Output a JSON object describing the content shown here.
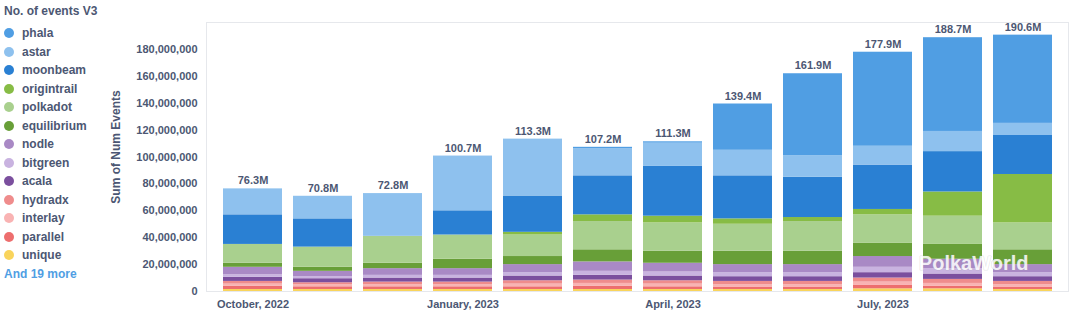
{
  "chart_data": {
    "type": "bar",
    "stacked": true,
    "title": "No. of events V3",
    "y_label": "Sum of Num Events",
    "legend": "left",
    "legend_more": "And 19 more",
    "grid": false,
    "annotations": [
      "PolkaWorld"
    ],
    "categories": [
      "October, 2022",
      null,
      null,
      "January, 2023",
      null,
      null,
      "April, 2023",
      null,
      null,
      "July, 2023",
      null,
      null
    ],
    "ylim": [
      0,
      200000000
    ],
    "yticks": [
      0,
      {
        "value": 20000000,
        "label": "20,000,000"
      },
      {
        "value": 40000000,
        "label": "40,000,000"
      },
      {
        "value": 60000000,
        "label": "60,000,000"
      },
      {
        "value": 80000000,
        "label": "80,000,000"
      },
      {
        "value": 100000000,
        "label": "100,000,000"
      },
      {
        "value": 120000000,
        "label": "120,000,000"
      },
      {
        "value": 140000000,
        "label": "140,000,000"
      },
      {
        "value": 160000000,
        "label": "160,000,000"
      },
      {
        "value": 180000000,
        "label": "180,000,000"
      }
    ],
    "totals": [
      76300000,
      70800000,
      72800000,
      100700000,
      113300000,
      107200000,
      111300000,
      139400000,
      161900000,
      177900000,
      188700000,
      190600000
    ],
    "total_labels": [
      "76.3M",
      "70.8M",
      "72.8M",
      "100.7M",
      "113.3M",
      "107.2M",
      "111.3M",
      "139.4M",
      "161.9M",
      "177.9M",
      "188.7M",
      "190.6M"
    ],
    "series": [
      {
        "name": "phala",
        "color": "#509ee3",
        "values": [
          0,
          0,
          0,
          0,
          0,
          1000000,
          1000000,
          34400000,
          60900000,
          69900000,
          69700000,
          65600000
        ]
      },
      {
        "name": "astar",
        "color": "#8ec1ee",
        "values": [
          19300000,
          16800000,
          31800000,
          40700000,
          42300000,
          20200000,
          17300000,
          19000000,
          16000000,
          14000000,
          15000000,
          9000000
        ]
      },
      {
        "name": "moonbeam",
        "color": "#2a80d3",
        "values": [
          22000000,
          21000000,
          0,
          18000000,
          27000000,
          29000000,
          37000000,
          32000000,
          30000000,
          33000000,
          30000000,
          29000000
        ]
      },
      {
        "name": "origintrail",
        "color": "#87bc45",
        "values": [
          0,
          0,
          0,
          0,
          2000000,
          5000000,
          5000000,
          4000000,
          3000000,
          4000000,
          18000000,
          36000000
        ]
      },
      {
        "name": "polkadot",
        "color": "#a9d08e",
        "values": [
          14000000,
          15000000,
          20000000,
          18000000,
          16000000,
          21000000,
          21000000,
          20000000,
          22000000,
          21000000,
          21000000,
          20000000
        ]
      },
      {
        "name": "equilibrium",
        "color": "#689f38",
        "values": [
          3000000,
          3000000,
          4000000,
          7000000,
          6000000,
          9000000,
          9000000,
          10000000,
          10000000,
          10000000,
          11000000,
          11000000
        ]
      },
      {
        "name": "nodle",
        "color": "#a989c5",
        "values": [
          5500000,
          4000000,
          5000000,
          5000000,
          6000000,
          7000000,
          6500000,
          6000000,
          6000000,
          8000000,
          7000000,
          6000000
        ]
      },
      {
        "name": "bitgreen",
        "color": "#c9b3e0",
        "values": [
          2000000,
          1500000,
          2000000,
          2000000,
          2500000,
          3000000,
          3000000,
          3000000,
          3000000,
          4000000,
          4000000,
          3000000
        ]
      },
      {
        "name": "acala",
        "color": "#7b4f9e",
        "values": [
          3000000,
          3000000,
          3000000,
          3000000,
          3500000,
          3500000,
          3500000,
          3500000,
          3500000,
          4000000,
          4000000,
          3500000
        ]
      },
      {
        "name": "hydradx",
        "color": "#ef8c8c",
        "values": [
          2000000,
          1500000,
          2000000,
          2000000,
          2500000,
          2500000,
          2500000,
          2500000,
          2500000,
          3000000,
          3000000,
          2500000
        ]
      },
      {
        "name": "interlay",
        "color": "#f9b3b3",
        "values": [
          1500000,
          1500000,
          1500000,
          1500000,
          2000000,
          2000000,
          2000000,
          2000000,
          2000000,
          2500000,
          2000000,
          2000000
        ]
      },
      {
        "name": "parallel",
        "color": "#ed6e6e",
        "values": [
          2500000,
          2000000,
          2000000,
          2000000,
          2000000,
          2500000,
          2000000,
          1500000,
          1500000,
          2500000,
          2000000,
          1500000
        ]
      },
      {
        "name": "unique",
        "color": "#f9d45c",
        "values": [
          1500000,
          1500000,
          1500000,
          1500000,
          1500000,
          1500000,
          1500000,
          1500000,
          1500000,
          2000000,
          2000000,
          1500000
        ]
      }
    ]
  }
}
